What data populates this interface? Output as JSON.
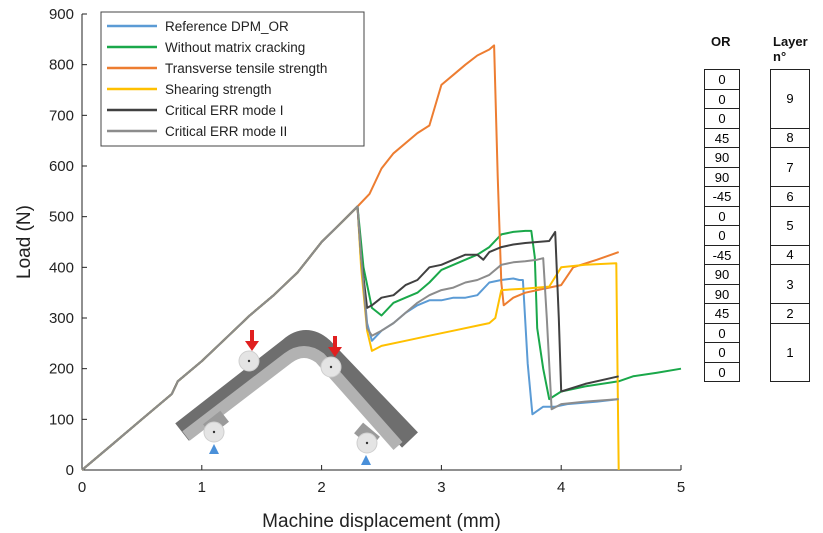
{
  "chart_data": {
    "type": "line",
    "xlabel": "Machine displacement (mm)",
    "ylabel": "Load (N)",
    "xlim": [
      0,
      5
    ],
    "ylim": [
      0,
      900
    ],
    "xticks": [
      "0",
      "1",
      "2",
      "3",
      "4",
      "5"
    ],
    "yticks": [
      "0",
      "100",
      "200",
      "300",
      "400",
      "500",
      "600",
      "700",
      "800",
      "900"
    ],
    "grid": false,
    "legend_position": "top-left",
    "series": [
      {
        "name": "Reference DPM_OR",
        "color": "#5b9bd5",
        "x": [
          0,
          0.25,
          0.5,
          0.75,
          0.8,
          1.0,
          1.2,
          1.4,
          1.6,
          1.8,
          1.9,
          2.0,
          2.15,
          2.3,
          2.33,
          2.38,
          2.42,
          2.5,
          2.6,
          2.7,
          2.8,
          2.9,
          3.0,
          3.1,
          3.2,
          3.3,
          3.4,
          3.5,
          3.6,
          3.65,
          3.68,
          3.72,
          3.76,
          3.85,
          3.95,
          4.05,
          4.3,
          4.48
        ],
        "y": [
          0,
          50,
          100,
          150,
          175,
          215,
          260,
          305,
          345,
          390,
          420,
          450,
          485,
          520,
          420,
          290,
          255,
          275,
          290,
          310,
          325,
          335,
          335,
          340,
          340,
          345,
          370,
          375,
          378,
          375,
          375,
          210,
          110,
          125,
          125,
          130,
          135,
          140
        ]
      },
      {
        "name": "Without matrix cracking",
        "color": "#1aa84a",
        "x": [
          0,
          0.25,
          0.5,
          0.75,
          0.8,
          1.0,
          1.2,
          1.4,
          1.6,
          1.8,
          1.9,
          2.0,
          2.15,
          2.3,
          2.35,
          2.42,
          2.5,
          2.6,
          2.7,
          2.8,
          2.9,
          3.0,
          3.1,
          3.2,
          3.3,
          3.4,
          3.5,
          3.6,
          3.7,
          3.75,
          3.78,
          3.8,
          3.85,
          3.9,
          4.0,
          4.2,
          4.48,
          4.6,
          4.8,
          5.0
        ],
        "y": [
          0,
          50,
          100,
          150,
          175,
          215,
          260,
          305,
          345,
          390,
          420,
          450,
          485,
          520,
          400,
          320,
          305,
          330,
          340,
          350,
          370,
          395,
          405,
          415,
          425,
          440,
          465,
          470,
          472,
          472,
          420,
          280,
          200,
          140,
          155,
          165,
          175,
          185,
          192,
          200
        ]
      },
      {
        "name": "Transverse tensile strength",
        "color": "#ed7d31",
        "x": [
          0,
          0.25,
          0.5,
          0.75,
          0.8,
          1.0,
          1.2,
          1.4,
          1.6,
          1.8,
          1.9,
          2.0,
          2.15,
          2.3,
          2.4,
          2.5,
          2.6,
          2.8,
          2.9,
          3.0,
          3.1,
          3.2,
          3.3,
          3.4,
          3.44,
          3.47,
          3.5,
          3.52,
          3.6,
          3.7,
          3.8,
          3.9,
          4.0,
          4.1,
          4.3,
          4.48
        ],
        "y": [
          0,
          50,
          100,
          150,
          175,
          215,
          260,
          305,
          345,
          390,
          420,
          450,
          485,
          520,
          545,
          595,
          625,
          665,
          680,
          760,
          780,
          800,
          818,
          830,
          838,
          580,
          370,
          325,
          340,
          350,
          355,
          360,
          365,
          400,
          415,
          430
        ]
      },
      {
        "name": "Shearing strength",
        "color": "#ffc000",
        "x": [
          0,
          0.25,
          0.5,
          0.75,
          0.8,
          1.0,
          1.2,
          1.4,
          1.6,
          1.8,
          1.9,
          2.0,
          2.15,
          2.3,
          2.33,
          2.38,
          2.42,
          2.5,
          2.7,
          2.9,
          3.1,
          3.3,
          3.4,
          3.45,
          3.5,
          3.7,
          3.9,
          4.0,
          4.2,
          4.46,
          4.47,
          4.48
        ],
        "y": [
          0,
          50,
          100,
          150,
          175,
          215,
          260,
          305,
          345,
          390,
          420,
          450,
          485,
          520,
          400,
          275,
          235,
          245,
          255,
          265,
          275,
          285,
          290,
          300,
          355,
          358,
          362,
          400,
          405,
          408,
          200,
          0
        ]
      },
      {
        "name": "Critical ERR mode I",
        "color": "#404040",
        "x": [
          0,
          0.25,
          0.5,
          0.75,
          0.8,
          1.0,
          1.2,
          1.4,
          1.6,
          1.8,
          1.9,
          2.0,
          2.15,
          2.3,
          2.33,
          2.38,
          2.42,
          2.5,
          2.6,
          2.7,
          2.8,
          2.9,
          3.0,
          3.1,
          3.2,
          3.3,
          3.35,
          3.4,
          3.5,
          3.6,
          3.7,
          3.8,
          3.9,
          3.95,
          3.98,
          4.0,
          4.2,
          4.48
        ],
        "y": [
          0,
          50,
          100,
          150,
          175,
          215,
          260,
          305,
          345,
          390,
          420,
          450,
          485,
          520,
          420,
          320,
          325,
          340,
          345,
          365,
          375,
          400,
          405,
          415,
          425,
          425,
          415,
          430,
          440,
          445,
          448,
          450,
          452,
          470,
          300,
          155,
          170,
          185
        ]
      },
      {
        "name": "Critical ERR mode II",
        "color": "#8c8c8c",
        "x": [
          0,
          0.25,
          0.5,
          0.75,
          0.8,
          1.0,
          1.2,
          1.4,
          1.6,
          1.8,
          1.9,
          2.0,
          2.15,
          2.3,
          2.33,
          2.38,
          2.42,
          2.5,
          2.6,
          2.7,
          2.8,
          2.9,
          3.0,
          3.1,
          3.2,
          3.3,
          3.4,
          3.5,
          3.6,
          3.7,
          3.8,
          3.85,
          3.88,
          3.92,
          4.0,
          4.2,
          4.48
        ],
        "y": [
          0,
          50,
          100,
          150,
          175,
          215,
          260,
          305,
          345,
          390,
          420,
          450,
          485,
          520,
          420,
          280,
          265,
          275,
          290,
          310,
          330,
          345,
          355,
          360,
          370,
          375,
          385,
          405,
          410,
          412,
          415,
          418,
          300,
          120,
          130,
          135,
          140
        ]
      }
    ]
  },
  "table": {
    "or_header": "OR",
    "layer_header": "Layer n°",
    "or_values": [
      "0",
      "0",
      "0",
      "45",
      "90",
      "90",
      "-45",
      "0",
      "0",
      "-45",
      "90",
      "90",
      "45",
      "0",
      "0",
      "0"
    ],
    "layers": [
      {
        "label": "9",
        "rows": 3
      },
      {
        "label": "8",
        "rows": 1
      },
      {
        "label": "7",
        "rows": 2
      },
      {
        "label": "6",
        "rows": 1
      },
      {
        "label": "5",
        "rows": 2
      },
      {
        "label": "4",
        "rows": 1
      },
      {
        "label": "3",
        "rows": 2
      },
      {
        "label": "2",
        "rows": 1
      },
      {
        "label": "1",
        "rows": 3
      }
    ]
  },
  "colors": {
    "specimen": "#8c8c8c",
    "specimen_light": "#b5b5b5",
    "roller": "#e2e2e2",
    "load_arrow": "#e02020",
    "support_triangle": "#4a90d9"
  },
  "icons": {
    "load_arrow": "load-arrow-icon",
    "support": "support-triangle-icon"
  }
}
